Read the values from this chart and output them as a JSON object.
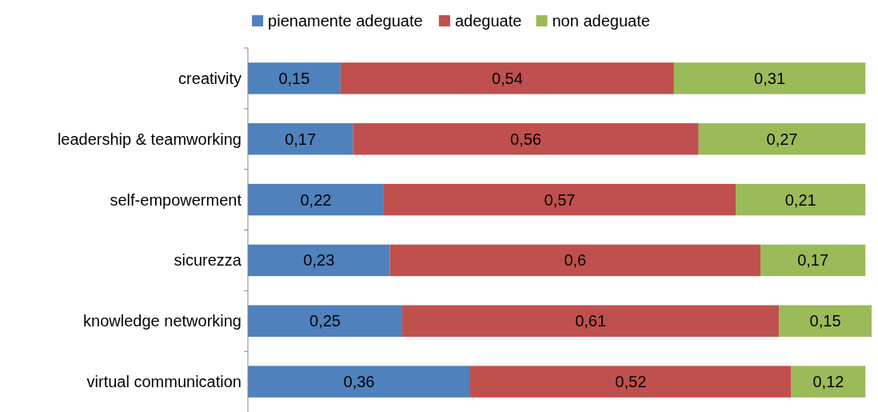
{
  "chart_data": {
    "type": "bar",
    "orientation": "horizontal",
    "stacked": true,
    "legend": "top",
    "xlim": [
      0,
      1.01
    ],
    "categories": [
      "creativity",
      "leadership & teamworking",
      "self-empowerment",
      "sicurezza",
      "knowledge networking",
      "virtual communication"
    ],
    "series": [
      {
        "name": "pienamente adeguate",
        "color": "#4f81bd",
        "values": [
          0.15,
          0.17,
          0.22,
          0.23,
          0.25,
          0.36
        ],
        "value_labels": [
          "0,15",
          "0,17",
          "0,22",
          "0,23",
          "0,25",
          "0,36"
        ]
      },
      {
        "name": "adeguate",
        "color": "#c0504d",
        "values": [
          0.54,
          0.56,
          0.57,
          0.6,
          0.61,
          0.52
        ],
        "value_labels": [
          "0,54",
          "0,56",
          "0,57",
          "0,6",
          "0,61",
          "0,52"
        ]
      },
      {
        "name": "non adeguate",
        "color": "#9bbb59",
        "values": [
          0.31,
          0.27,
          0.21,
          0.17,
          0.15,
          0.12
        ],
        "value_labels": [
          "0,31",
          "0,27",
          "0,21",
          "0,17",
          "0,15",
          "0,12"
        ]
      }
    ]
  }
}
